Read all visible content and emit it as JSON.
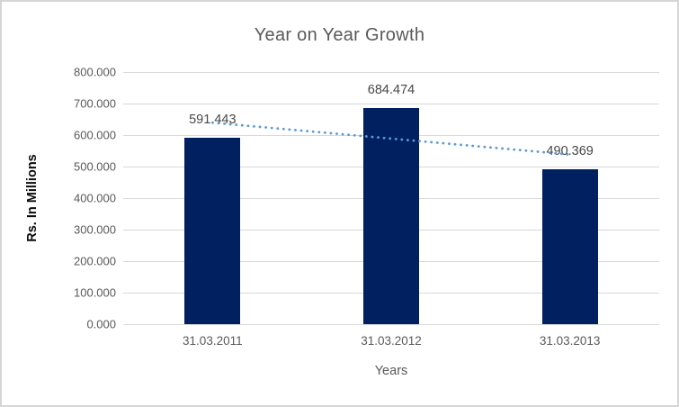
{
  "window": {
    "background": "#ffffff",
    "border_color": "#d6d6d6"
  },
  "chart_data": {
    "type": "bar",
    "title": "Year on Year Growth",
    "xlabel": "Years",
    "ylabel": "Rs. In Millions",
    "categories": [
      "31.03.2011",
      "31.03.2012",
      "31.03.2013"
    ],
    "series": [
      {
        "name": "Rs. In Millions",
        "values": [
          591.443,
          684.474,
          490.369
        ]
      }
    ],
    "data_labels": [
      "591.443",
      "684.474",
      "490.369"
    ],
    "y_ticks": [
      800,
      700,
      600,
      500,
      400,
      300,
      200,
      100,
      0
    ],
    "y_tick_labels": [
      "800.000",
      "700.000",
      "600.000",
      "500.000",
      "400.000",
      "300.000",
      "200.000",
      "100.000",
      "0.000"
    ],
    "ylim": [
      0,
      800
    ],
    "grid": true,
    "legend": "none",
    "trendline": {
      "type": "linear",
      "style": "dotted",
      "color": "#5b9bd5"
    },
    "colors": {
      "bar": "#002060",
      "gridline": "#d9d9d9",
      "axis_text": "#595959",
      "title_text": "#595959",
      "data_label_text": "#474747"
    }
  }
}
